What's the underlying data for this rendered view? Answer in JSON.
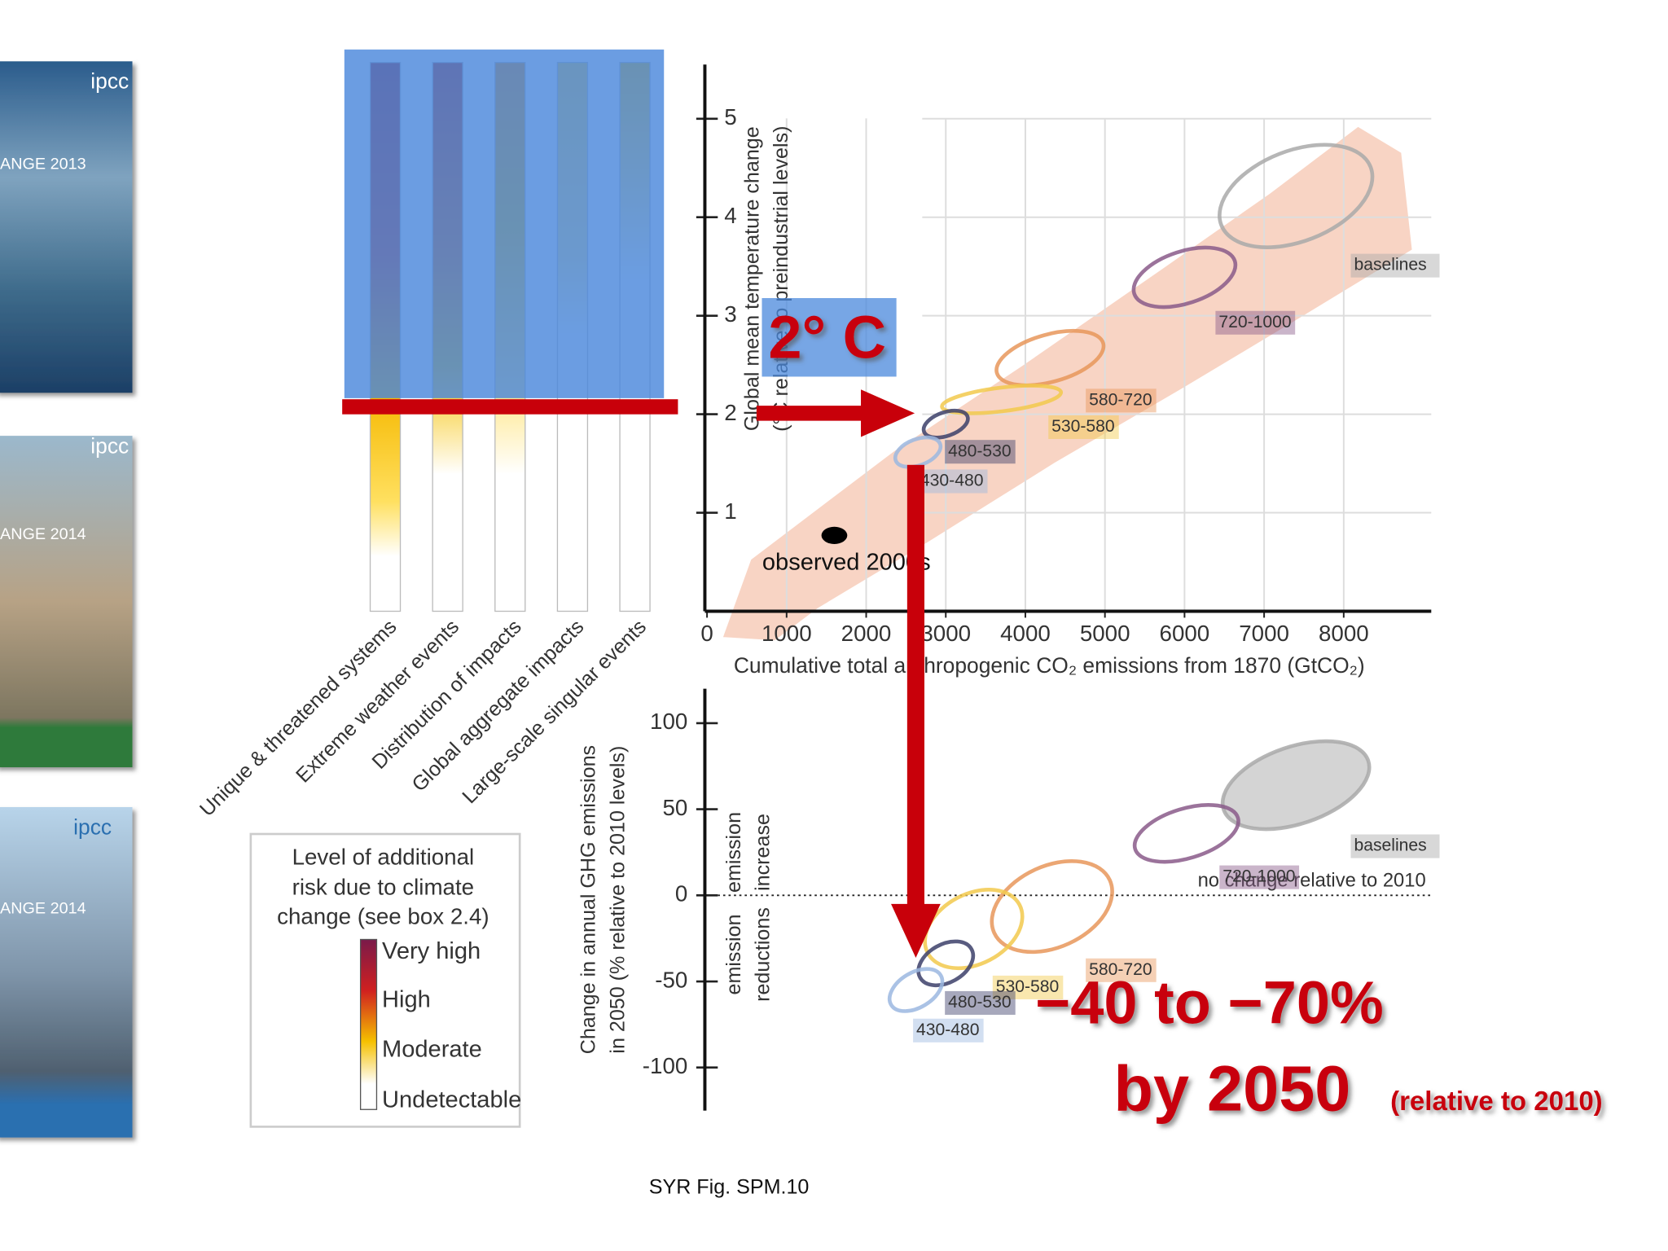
{
  "covers": [
    {
      "brand": "ipcc",
      "title": "ANGE 2013"
    },
    {
      "brand": "ipcc",
      "title": "ANGE 2014"
    },
    {
      "brand": "ipcc",
      "title": "ANGE 2014"
    }
  ],
  "risk_panel": {
    "categories": [
      "Unique & threatened systems",
      "Extreme weather events",
      "Distribution of impacts",
      "Global aggregate impacts",
      "Large-scale singular events"
    ],
    "legend_title": [
      "Level of additional",
      "risk due to climate",
      "change (see box 2.4)"
    ],
    "legend_levels": [
      "Very high",
      "High",
      "Moderate",
      "Undetectable"
    ]
  },
  "chart_data": [
    {
      "type": "ellipse",
      "y_label": [
        "Global mean temperature change",
        "(°C relative to preindustrial levels)"
      ],
      "x_label": "Cumulative total anthropogenic CO₂ emissions from 1870 (GtCO₂)",
      "xlim": [
        0,
        9100
      ],
      "ylim": [
        0,
        5.55
      ],
      "xticks": [
        0,
        1000,
        2000,
        3000,
        4000,
        5000,
        6000,
        7000,
        8000
      ],
      "yticks": [
        1,
        2,
        3,
        4,
        5
      ],
      "grid": true,
      "series": [
        {
          "name": "baselines",
          "color": "#a9a9a9",
          "xrange": [
            6400,
            8400
          ],
          "yrange": [
            3.64,
            4.79
          ]
        },
        {
          "name": "720-1000",
          "color": "#8a5a8a",
          "xrange": [
            5300,
            6700
          ],
          "yrange": [
            3.06,
            3.72
          ]
        },
        {
          "name": "580-720",
          "color": "#e8965a",
          "xrange": [
            3550,
            5070
          ],
          "yrange": [
            2.27,
            2.87
          ]
        },
        {
          "name": "530-580",
          "color": "#f2c94c",
          "xrange": [
            2800,
            4600
          ],
          "yrange": [
            2.0,
            2.3
          ]
        },
        {
          "name": "480-530",
          "color": "#3c3f6a",
          "xrange": [
            2700,
            3300
          ],
          "yrange": [
            1.75,
            2.05
          ]
        },
        {
          "name": "430-480",
          "color": "#9bb7e0",
          "xrange": [
            2350,
            2950
          ],
          "yrange": [
            1.45,
            1.78
          ]
        }
      ],
      "points": [
        {
          "name": "observed 2000s",
          "color": "#000000",
          "x": 1600,
          "y": 0.77
        }
      ]
    },
    {
      "type": "ellipse",
      "y_label": [
        "Change in annual GHG emissions",
        "in 2050 (% relative to 2010 levels)"
      ],
      "xlim": [
        0,
        9100
      ],
      "ylim": [
        -125,
        120
      ],
      "yticks": [
        -100,
        -50,
        0,
        50,
        100
      ],
      "reference_line": 0,
      "reference_label": "no change relative to 2010",
      "region_labels": [
        [
          "emission",
          "increase"
        ],
        [
          "emission",
          "reductions"
        ]
      ],
      "series": [
        {
          "name": "baselines",
          "color": "#a9a9a9",
          "xrange": [
            6400,
            8400
          ],
          "yrange": [
            36,
            92
          ]
        },
        {
          "name": "720-1000",
          "color": "#8a5a8a",
          "xrange": [
            5300,
            6750
          ],
          "yrange": [
            18,
            54
          ]
        },
        {
          "name": "580-720",
          "color": "#e8965a",
          "xrange": [
            3600,
            5070
          ],
          "yrange": [
            -36,
            23
          ]
        },
        {
          "name": "530-580",
          "color": "#f2c94c",
          "xrange": [
            2800,
            3900
          ],
          "yrange": [
            -46,
            7
          ]
        },
        {
          "name": "480-530",
          "color": "#3c3f6a",
          "xrange": [
            2700,
            3300
          ],
          "yrange": [
            -55,
            -24
          ]
        },
        {
          "name": "430-480",
          "color": "#9bb7e0",
          "xrange": [
            2350,
            2900
          ],
          "yrange": [
            -71,
            -39
          ]
        }
      ]
    }
  ],
  "annotations": {
    "target": "2°  C",
    "reduction": "−40 to −70%",
    "year": "by 2050",
    "relative": "(relative to 2010)",
    "source": "SYR Fig. SPM.10"
  }
}
